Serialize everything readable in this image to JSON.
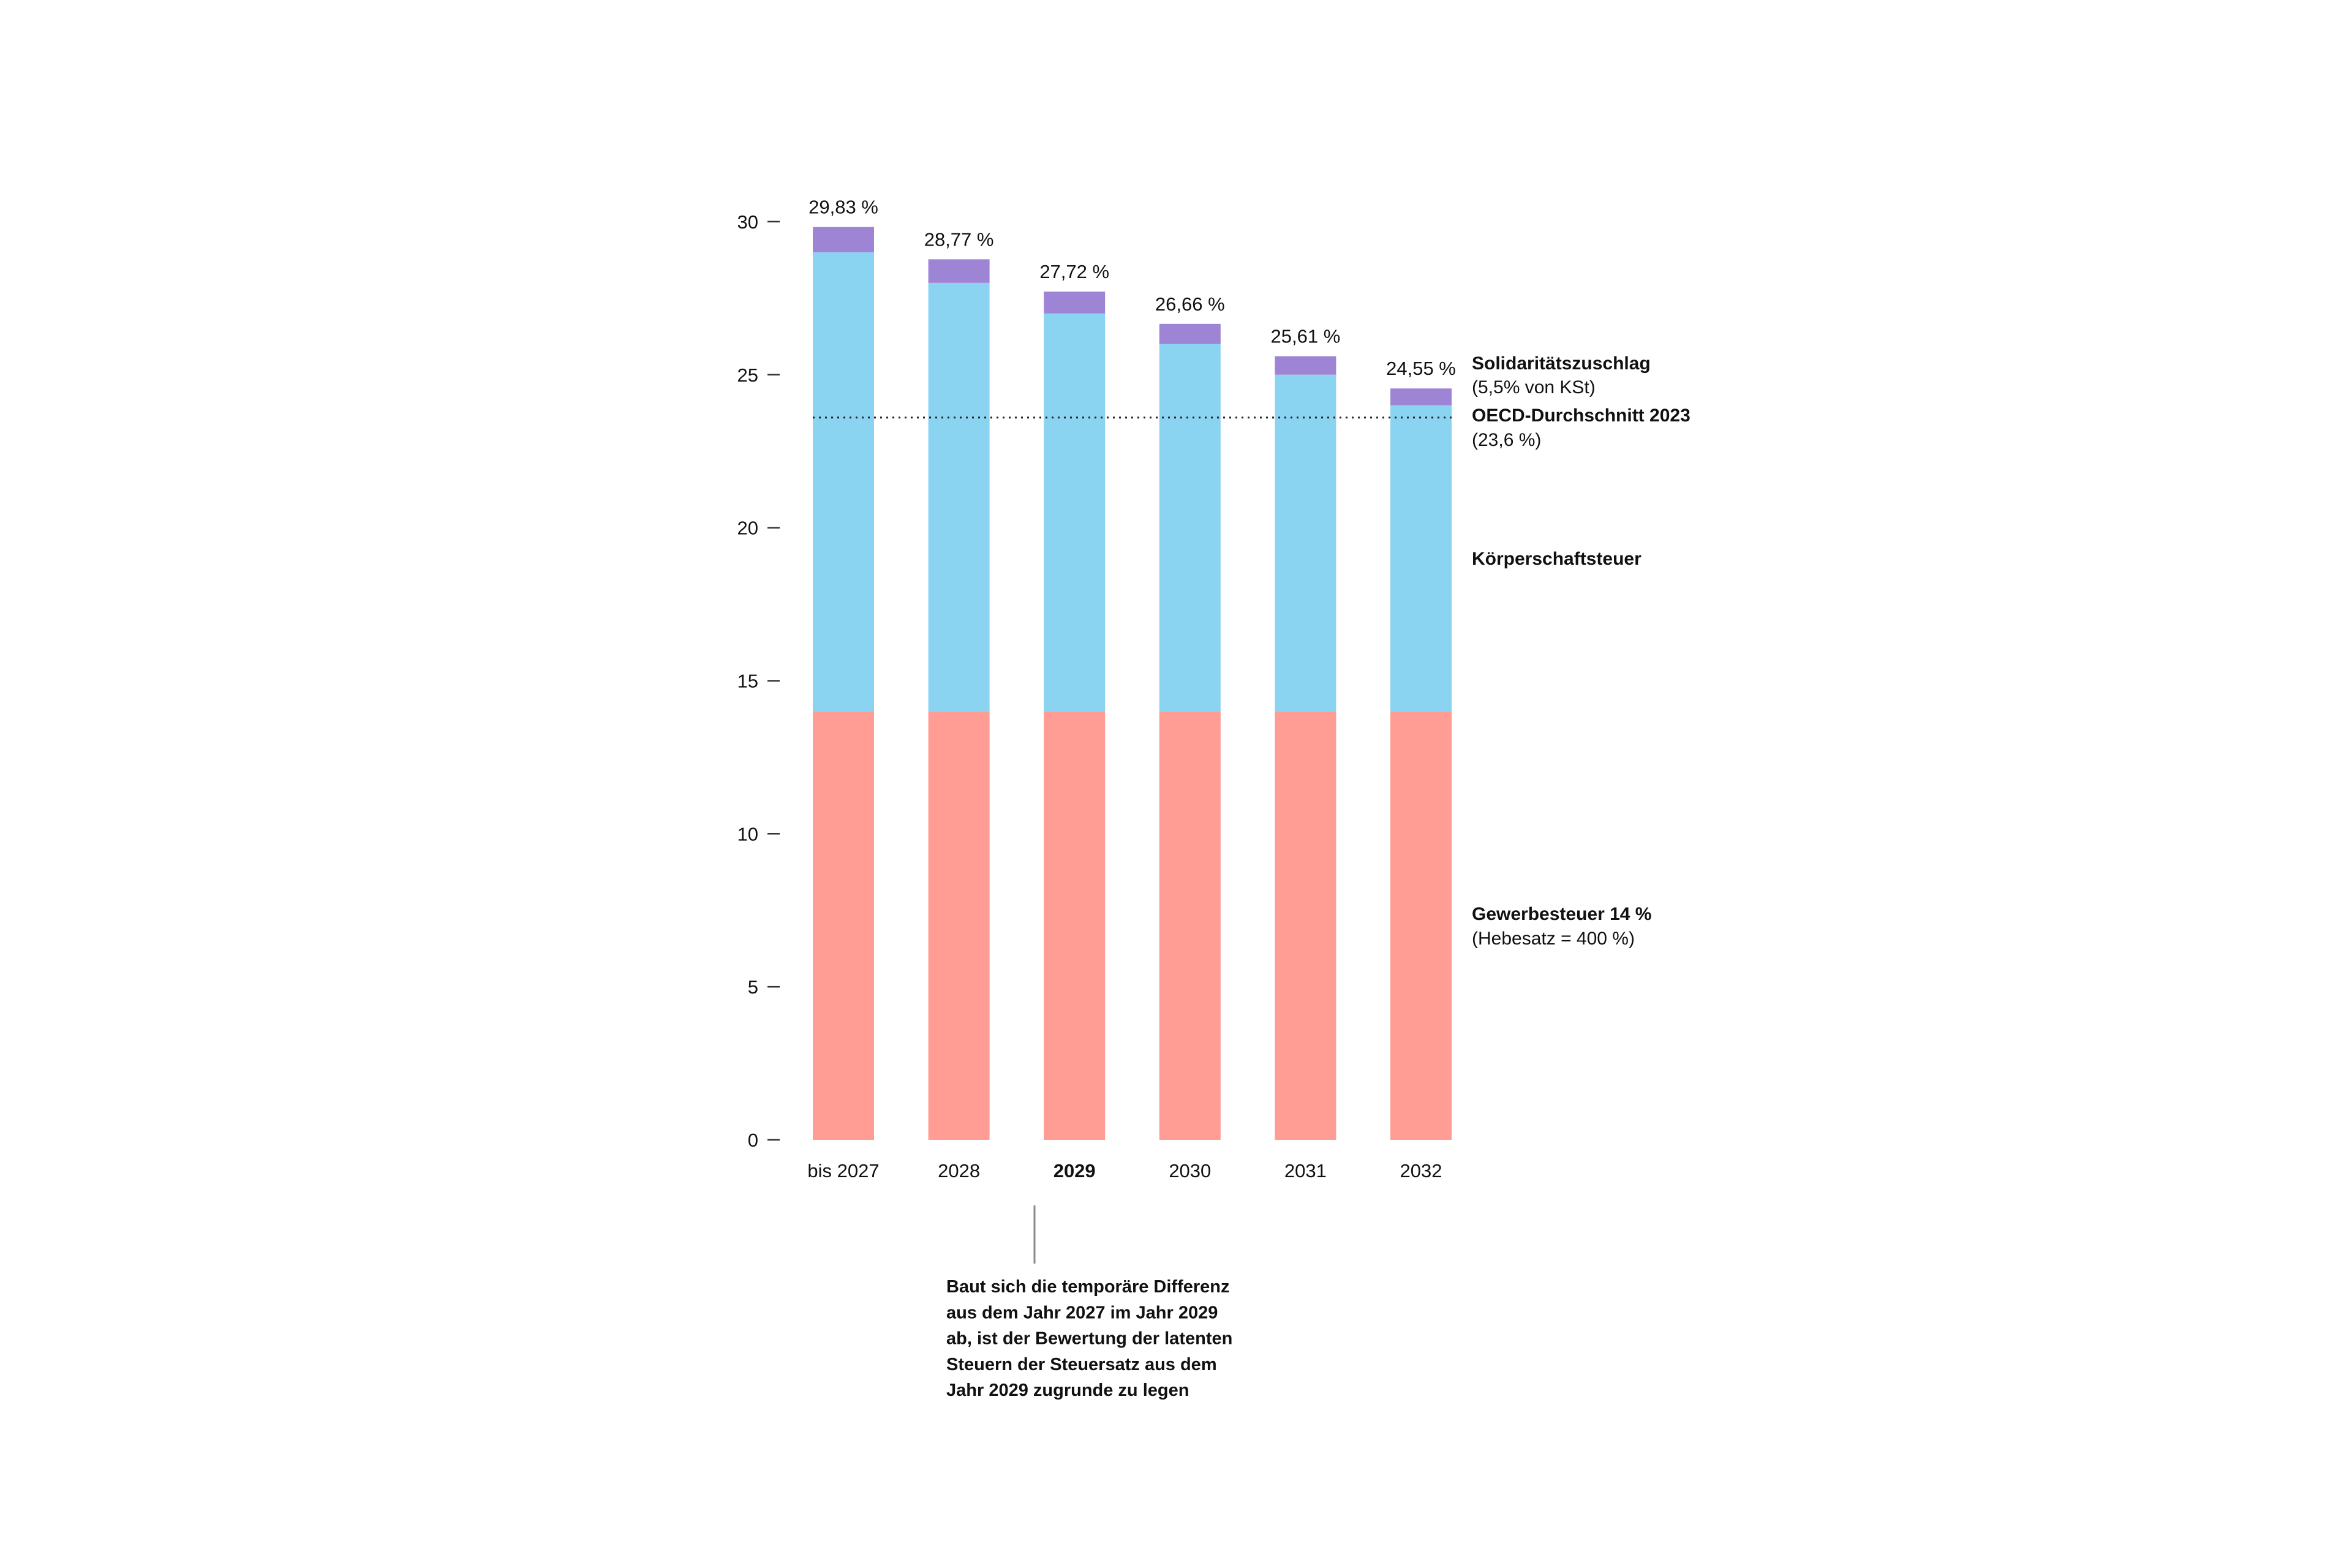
{
  "chart_data": {
    "type": "bar",
    "stacked": true,
    "categories": [
      "bis 2027",
      "2028",
      "2029",
      "2030",
      "2031",
      "2032"
    ],
    "highlight_category": "2029",
    "series": [
      {
        "name": "Gewerbesteuer",
        "color": "#FF9C93",
        "values": [
          14,
          14,
          14,
          14,
          14,
          14
        ]
      },
      {
        "name": "Körperschaftsteuer",
        "color": "#8AD4F2",
        "values": [
          15,
          14,
          13,
          12,
          11,
          10
        ]
      },
      {
        "name": "Solidaritätszuschlag",
        "color": "#9D84D5",
        "values": [
          0.825,
          0.77,
          0.715,
          0.66,
          0.605,
          0.55
        ]
      }
    ],
    "total_labels": [
      "29,83 %",
      "28,77 %",
      "27,72 %",
      "26,66 %",
      "25,61 %",
      "24,55 %"
    ],
    "yticks": [
      0,
      5,
      10,
      15,
      20,
      25,
      30
    ],
    "ylim": [
      0,
      30
    ],
    "reference_line": {
      "value": 23.6,
      "style": "dotted"
    },
    "legend": {
      "soli_title": "Solidaritätszuschlag",
      "soli_sub": "(5,5% von KSt)",
      "oecd_title": "OECD-Durchschnitt 2023",
      "oecd_sub": "(23,6 %)",
      "kst_title": "Körperschaftsteuer",
      "gewst_title": "Gewerbesteuer 14 %",
      "gewst_sub": "(Hebesatz = 400 %)"
    },
    "annotation": {
      "target": "2029",
      "lines": [
        "Baut sich die temporäre Differenz",
        "aus dem Jahr 2027 im Jahr 2029",
        "ab, ist der Bewertung der latenten",
        "Steuern der Steuersatz aus dem",
        "Jahr 2029 zugrunde zu legen"
      ]
    }
  }
}
